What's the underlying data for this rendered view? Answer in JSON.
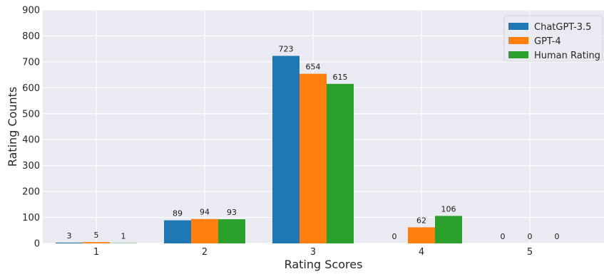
{
  "chart_data": {
    "type": "bar",
    "categories": [
      "1",
      "2",
      "3",
      "4",
      "5"
    ],
    "series": [
      {
        "name": "ChatGPT-3.5",
        "color": "#1f77b4",
        "values": [
          3,
          89,
          723,
          0,
          0
        ]
      },
      {
        "name": "GPT-4",
        "color": "#ff7f0e",
        "values": [
          5,
          94,
          654,
          62,
          0
        ]
      },
      {
        "name": "Human Rating",
        "color": "#2ca02c",
        "values": [
          1,
          93,
          615,
          106,
          0
        ]
      }
    ],
    "xlabel": "Rating Scores",
    "ylabel": "Rating Counts",
    "ylim": [
      0,
      900
    ],
    "yticks": [
      0,
      100,
      200,
      300,
      400,
      500,
      600,
      700,
      800,
      900
    ],
    "grid": true,
    "grid_color": "#e6e6e6",
    "plot_background": "#eaeaf2",
    "legend_position": "top-right"
  }
}
